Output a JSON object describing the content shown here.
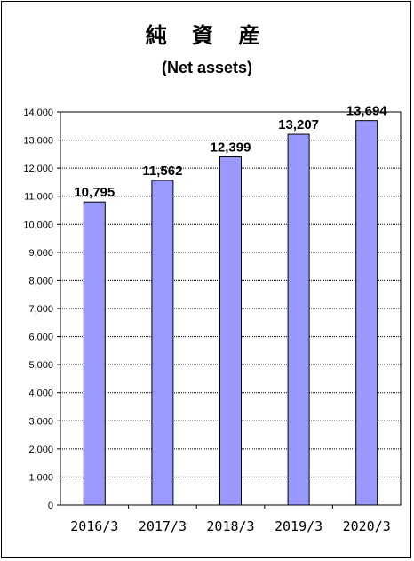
{
  "chart_data": {
    "type": "bar",
    "title": "純 資 産",
    "subtitle": "(Net assets)",
    "categories": [
      "2016/3",
      "2017/3",
      "2018/3",
      "2019/3",
      "2020/3"
    ],
    "values": [
      10795,
      11562,
      12399,
      13207,
      13694
    ],
    "value_labels": [
      "10,795",
      "11,562",
      "12,399",
      "13,207",
      "13,694"
    ],
    "ylim": [
      0,
      14000
    ],
    "y_ticks": [
      0,
      1000,
      2000,
      3000,
      4000,
      5000,
      6000,
      7000,
      8000,
      9000,
      10000,
      11000,
      12000,
      13000,
      14000
    ],
    "y_tick_labels": [
      "0",
      "1,000",
      "2,000",
      "3,000",
      "4,000",
      "5,000",
      "6,000",
      "7,000",
      "8,000",
      "9,000",
      "10,000",
      "11,000",
      "12,000",
      "13,000",
      "14,000"
    ],
    "grid": true,
    "legend": "none",
    "colors": {
      "bar": "#9999ff",
      "bar_stroke": "#000000",
      "grid": "#000000"
    }
  }
}
